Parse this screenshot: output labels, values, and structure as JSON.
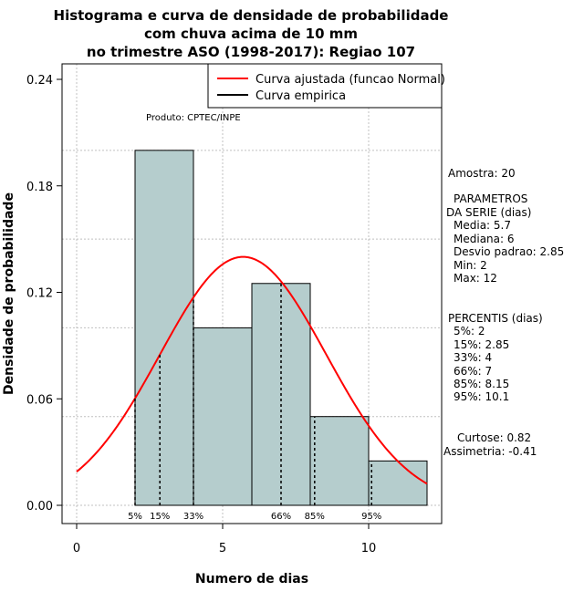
{
  "chart_data": {
    "type": "histogram",
    "title_lines": [
      "Histograma e curva de densidade de probabilidade",
      "com chuva acima de 10 mm",
      "no trimestre ASO (1998-2017): Regiao 107"
    ],
    "xlabel": "Numero de dias",
    "ylabel": "Densidade de probabilidade",
    "xlim": [
      -0.5,
      12.5
    ],
    "ylim": [
      0,
      0.24
    ],
    "x_ticks": [
      0,
      5,
      10
    ],
    "y_ticks": [
      0.0,
      0.06,
      0.12,
      0.18,
      0.24
    ],
    "y_tick_labels": [
      "0.00",
      "0.06",
      "0.12",
      "0.18",
      "0.24"
    ],
    "grid": true,
    "bins": [
      {
        "start": 2,
        "end": 4,
        "density": 0.2
      },
      {
        "start": 4,
        "end": 6,
        "density": 0.1
      },
      {
        "start": 6,
        "end": 8,
        "density": 0.125
      },
      {
        "start": 8,
        "end": 10,
        "density": 0.05
      },
      {
        "start": 10,
        "end": 12,
        "density": 0.025
      }
    ],
    "bar_color": "#b5cdcd",
    "normal_curve": {
      "mean": 5.7,
      "sd": 2.85,
      "x_range": [
        0,
        12
      ],
      "color": "#ff0000"
    },
    "percentile_lines": [
      {
        "label": "5%",
        "x": 2.0
      },
      {
        "label": "15%",
        "x": 2.85
      },
      {
        "label": "33%",
        "x": 4.0
      },
      {
        "label": "66%",
        "x": 7.0
      },
      {
        "label": "85%",
        "x": 8.15
      },
      {
        "label": "95%",
        "x": 10.1
      }
    ],
    "legend": {
      "position": "top-right",
      "entries": [
        {
          "label": "Curva ajustada (funcao Normal)",
          "color": "#ff0000"
        },
        {
          "label": "Curva empirica",
          "color": "#000000"
        }
      ]
    },
    "annotation": "Produto: CPTEC/INPE"
  },
  "stats_panel": {
    "sample": "Amostra: 20",
    "params_title_1": "PARAMETROS",
    "params_title_2": "DA SERIE (dias)",
    "media": "Media: 5.7",
    "mediana": "Mediana: 6",
    "desvio": "Desvio padrao: 2.85",
    "min": "Min: 2",
    "max": "Max: 12",
    "percentis_title": "PERCENTIS (dias)",
    "p5": "5%: 2",
    "p15": "15%: 2.85",
    "p33": "33%: 4",
    "p66": "66%: 7",
    "p85": "85%: 8.15",
    "p95": "95%: 10.1",
    "curtose": "Curtose: 0.82",
    "assimetria": "Assimetria: -0.41"
  }
}
